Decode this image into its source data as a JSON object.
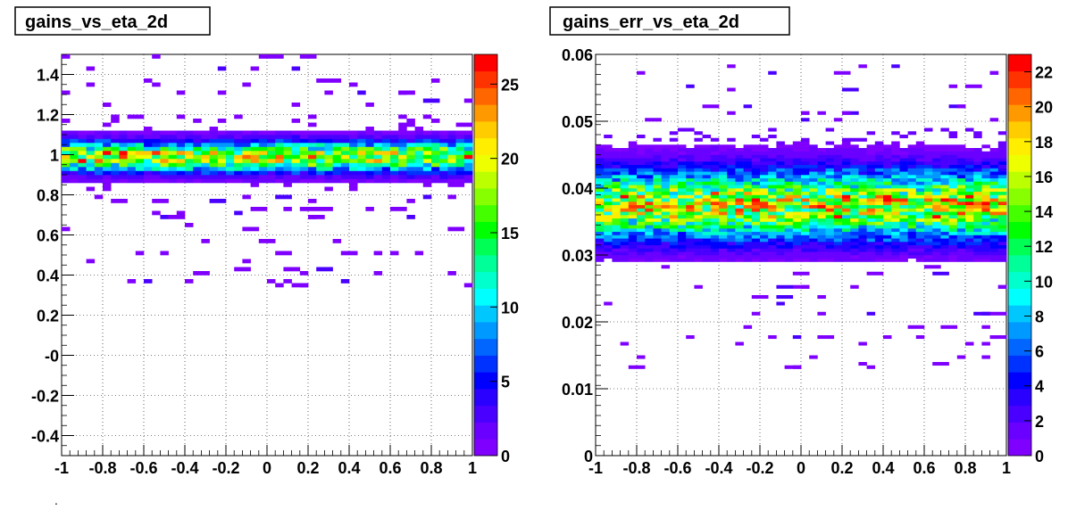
{
  "page": {
    "footer_mark": "."
  },
  "chart_data": [
    {
      "type": "heatmap",
      "title": "gains_vs_eta_2d",
      "x_ticks": [
        "-1",
        "-0.8",
        "-0.6",
        "-0.4",
        "-0.2",
        "0",
        "0.2",
        "0.4",
        "0.6",
        "0.8",
        "1"
      ],
      "y_ticks": [
        "-0.4",
        "-0.2",
        "-0",
        "0.2",
        "0.4",
        "0.6",
        "0.8",
        "1",
        "1.2",
        "1.4"
      ],
      "colorbar_ticks": [
        "0",
        "5",
        "10",
        "15",
        "20",
        "25"
      ],
      "xlim": [
        -1,
        1
      ],
      "ylim": [
        -0.5,
        1.5
      ],
      "zlim": [
        0,
        27
      ],
      "grid": true,
      "band": {
        "center": 0.99,
        "width": 0.05,
        "peak": 20,
        "min_y": 0.82,
        "max_y": 1.2
      },
      "sparse": {
        "rows": [
          1.48,
          1.43,
          1.38,
          1.34,
          1.3,
          1.26,
          1.25,
          0.79,
          0.76,
          0.72,
          0.7,
          0.68,
          0.64,
          0.62,
          0.56,
          0.5,
          0.46,
          0.43,
          0.4,
          0.37,
          0.35
        ],
        "count": 90
      }
    },
    {
      "type": "heatmap",
      "title": "gains_err_vs_eta_2d",
      "x_ticks": [
        "-1",
        "-0.8",
        "-0.6",
        "-0.4",
        "-0.2",
        "0",
        "0.2",
        "0.4",
        "0.6",
        "0.8",
        "1"
      ],
      "y_ticks": [
        "0",
        "0.01",
        "0.02",
        "0.03",
        "0.04",
        "0.05",
        "0.06"
      ],
      "colorbar_ticks": [
        "0",
        "2",
        "4",
        "6",
        "8",
        "10",
        "12",
        "14",
        "16",
        "18",
        "20",
        "22"
      ],
      "xlim": [
        -1,
        1
      ],
      "ylim": [
        0,
        0.06
      ],
      "zlim": [
        0,
        23
      ],
      "grid": true,
      "band": {
        "center": 0.0375,
        "width": 0.0035,
        "peak": 17,
        "min_y": 0.029,
        "max_y": 0.049
      },
      "sparse": {
        "rows": [
          0.06,
          0.058,
          0.057,
          0.055,
          0.0545,
          0.052,
          0.05,
          0.0515,
          0.028,
          0.027,
          0.0255,
          0.025,
          0.0235,
          0.0225,
          0.021,
          0.019,
          0.0175,
          0.0165,
          0.0145,
          0.0135,
          0.013
        ],
        "count": 80
      }
    }
  ]
}
